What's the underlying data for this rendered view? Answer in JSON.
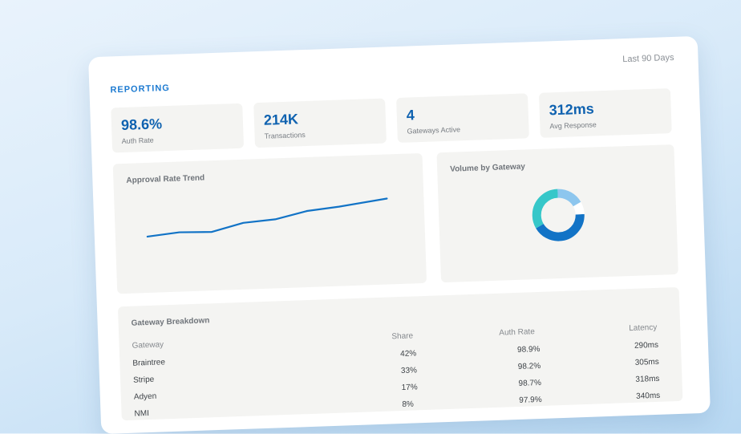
{
  "header": {
    "brand": "REPORTING",
    "range": "Last 90 Days"
  },
  "kpis": [
    {
      "value": "98.6%",
      "label": "Auth Rate"
    },
    {
      "value": "214K",
      "label": "Transactions"
    },
    {
      "value": "4",
      "label": "Gateways Active"
    },
    {
      "value": "312ms",
      "label": "Avg Response"
    }
  ],
  "trend": {
    "title": "Approval Rate Trend",
    "line_color": "#1273c6"
  },
  "volume": {
    "title": "Volume by Gateway",
    "slices": [
      {
        "share": 42,
        "color": "#1273c6"
      },
      {
        "share": 33,
        "color": "#36c7c9"
      },
      {
        "share": 17,
        "color": "#8dc6ee"
      },
      {
        "share": 8,
        "color": "#ffffff"
      }
    ]
  },
  "breakdown": {
    "title": "Gateway Breakdown",
    "headers": [
      "Gateway",
      "Share",
      "Auth Rate",
      "Latency"
    ],
    "rows": [
      [
        "Braintree",
        "42%",
        "98.9%",
        "290ms"
      ],
      [
        "Stripe",
        "33%",
        "98.2%",
        "305ms"
      ],
      [
        "Adyen",
        "17%",
        "98.7%",
        "318ms"
      ],
      [
        "NMI",
        "8%",
        "97.9%",
        "340ms"
      ]
    ]
  }
}
